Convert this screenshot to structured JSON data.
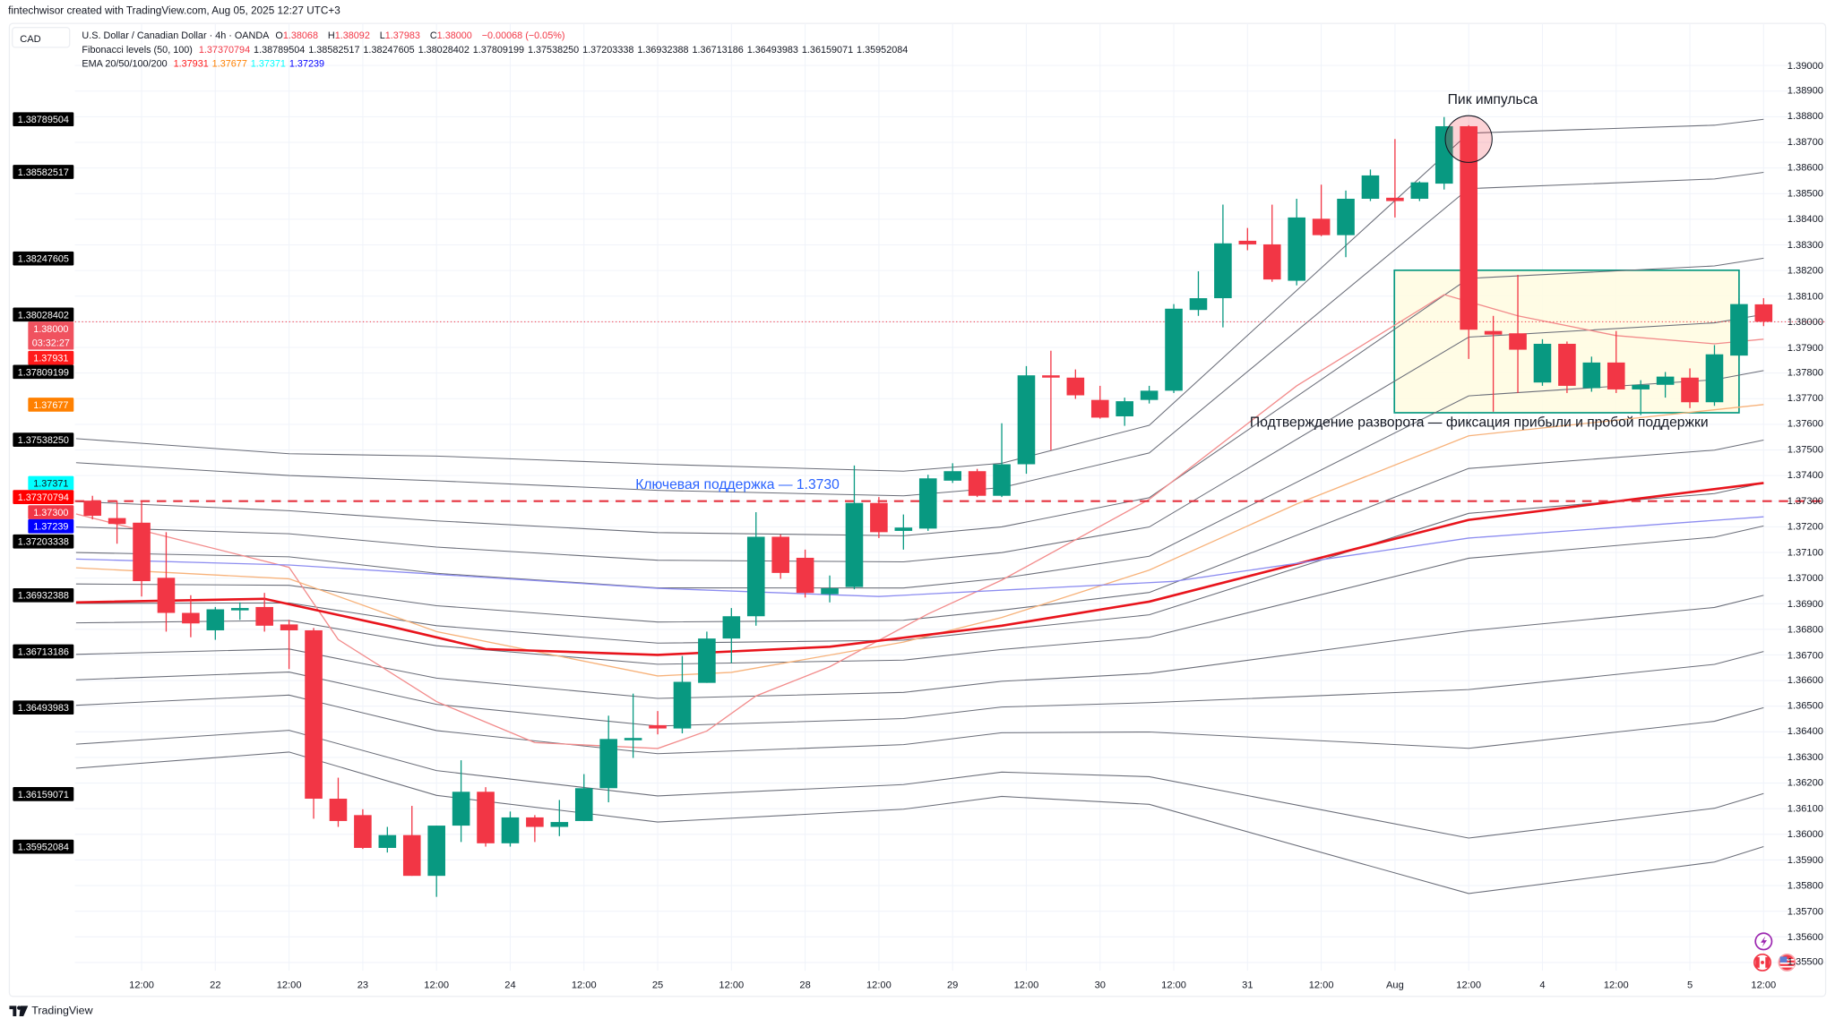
{
  "watermark": "fintechwisor created with TradingView.com, Aug 05, 2025 12:27 UTC+3",
  "currency_box": "CAD",
  "logo_text": "TradingView",
  "legend": {
    "symbol": "U.S. Dollar / Canadian Dollar · 4h · OANDA",
    "o_label": "O",
    "o": "1.38068",
    "h_label": "H",
    "h": "1.38092",
    "l_label": "L",
    "l": "1.37983",
    "c_label": "C",
    "c": "1.38000",
    "change": "−0.00068 (−0.05%)",
    "fib_title": "Fibonacci levels (50, 100)",
    "fib_values": [
      "1.37370794",
      "1.38789504",
      "1.38582517",
      "1.38247605",
      "1.38028402",
      "1.37809199",
      "1.37538250",
      "1.37203338",
      "1.36932388",
      "1.36713186",
      "1.36493983",
      "1.36159071",
      "1.35952084"
    ],
    "ema_title": "EMA 20/50/100/200",
    "ema_values": [
      "1.37931",
      "1.37677",
      "1.37371",
      "1.37239"
    ]
  },
  "colors": {
    "up": "#089981",
    "down": "#f23645",
    "fib_line": "#6a6d78",
    "ema20": "#f28b8b",
    "ema50": "#f7b27a",
    "ema100": "#e8141c",
    "ema200": "#8c8cf0",
    "ema_label_20": "#ff1a1a",
    "ema_label_50": "#ff8000",
    "ema_label_100": "#00ffff",
    "ema_label_200": "#0000ff",
    "support": "#e5323f",
    "support_text": "#2962ff",
    "zone_fill": "#fffbe0",
    "zone_border": "#089981",
    "grid": "#f0f3fa"
  },
  "chart_data": {
    "type": "candlestick",
    "symbol": "USDCAD",
    "interval": "4h",
    "ylim": [
      1.3545,
      1.3905
    ],
    "grid": true,
    "y_ticks": [
      "1.39000",
      "1.38900",
      "1.38800",
      "1.38700",
      "1.38600",
      "1.38500",
      "1.38400",
      "1.38300",
      "1.38200",
      "1.38100",
      "1.38000",
      "1.37900",
      "1.37800",
      "1.37700",
      "1.37600",
      "1.37500",
      "1.37400",
      "1.37300",
      "1.37200",
      "1.37100",
      "1.37000",
      "1.36900",
      "1.36800",
      "1.36700",
      "1.36600",
      "1.36500",
      "1.36400",
      "1.36300",
      "1.36200",
      "1.36100",
      "1.36000",
      "1.35900",
      "1.35800",
      "1.35700",
      "1.35600",
      "1.35500"
    ],
    "x_labels": [
      {
        "t": "Jul 21 12:00",
        "label": "12:00"
      },
      {
        "t": "Jul 22 00:00",
        "label": "22"
      },
      {
        "t": "Jul 22 12:00",
        "label": "12:00"
      },
      {
        "t": "Jul 23 00:00",
        "label": "23"
      },
      {
        "t": "Jul 23 12:00",
        "label": "12:00"
      },
      {
        "t": "Jul 24 00:00",
        "label": "24"
      },
      {
        "t": "Jul 24 12:00",
        "label": "12:00"
      },
      {
        "t": "Jul 25 00:00",
        "label": "25"
      },
      {
        "t": "Jul 25 12:00",
        "label": "12:00"
      },
      {
        "t": "Jul 28 00:00",
        "label": "28"
      },
      {
        "t": "Jul 28 12:00",
        "label": "12:00"
      },
      {
        "t": "Jul 29 00:00",
        "label": "29"
      },
      {
        "t": "Jul 29 12:00",
        "label": "12:00"
      },
      {
        "t": "Jul 30 00:00",
        "label": "30"
      },
      {
        "t": "Jul 30 12:00",
        "label": "12:00"
      },
      {
        "t": "Jul 31 00:00",
        "label": "31"
      },
      {
        "t": "Jul 31 12:00",
        "label": "12:00"
      },
      {
        "t": "Aug 1 00:00",
        "label": "Aug"
      },
      {
        "t": "Aug 1 12:00",
        "label": "12:00"
      },
      {
        "t": "Aug 4 00:00",
        "label": "4"
      },
      {
        "t": "Aug 4 12:00",
        "label": "12:00"
      },
      {
        "t": "Aug 5 00:00",
        "label": "5"
      },
      {
        "t": "Aug 5 12:00",
        "label": "12:00"
      }
    ],
    "candles_fields": [
      "time",
      "open",
      "high",
      "low",
      "close"
    ],
    "candles": [
      [
        "Jul 21 04:00",
        1.37302,
        1.37321,
        1.37229,
        1.37243
      ],
      [
        "Jul 21 08:00",
        1.37234,
        1.37302,
        1.37134,
        1.37211
      ],
      [
        "Jul 21 12:00",
        1.37216,
        1.37302,
        1.36928,
        1.36988
      ],
      [
        "Jul 21 16:00",
        1.37001,
        1.37179,
        1.36791,
        1.36864
      ],
      [
        "Jul 21 20:00",
        1.36864,
        1.36933,
        1.36769,
        1.36823
      ],
      [
        "Jul 22 00:00",
        1.36796,
        1.36887,
        1.36759,
        1.36878
      ],
      [
        "Jul 22 04:00",
        1.36874,
        1.36905,
        1.36837,
        1.36883
      ],
      [
        "Jul 22 08:00",
        1.36887,
        1.36942,
        1.36791,
        1.36814
      ],
      [
        "Jul 22 12:00",
        1.36819,
        1.36837,
        1.36645,
        1.36796
      ],
      [
        "Jul 22 16:00",
        1.36796,
        1.36805,
        1.36061,
        1.36139
      ],
      [
        "Jul 22 20:00",
        1.36139,
        1.36221,
        1.36029,
        1.36052
      ],
      [
        "Jul 23 00:00",
        1.36075,
        1.36098,
        1.35943,
        1.35947
      ],
      [
        "Jul 23 04:00",
        1.35947,
        1.36029,
        1.35929,
        1.35997
      ],
      [
        "Jul 23 08:00",
        1.35997,
        1.36111,
        1.35838,
        1.35838
      ],
      [
        "Jul 23 12:00",
        1.35838,
        1.36034,
        1.35756,
        1.36034
      ],
      [
        "Jul 23 16:00",
        1.36034,
        1.36289,
        1.3597,
        1.36166
      ],
      [
        "Jul 23 20:00",
        1.36166,
        1.36184,
        1.35952,
        1.35965
      ],
      [
        "Jul 24 00:00",
        1.35965,
        1.36089,
        1.35952,
        1.36066
      ],
      [
        "Jul 24 04:00",
        1.36066,
        1.36075,
        1.3597,
        1.36029
      ],
      [
        "Jul 24 08:00",
        1.36029,
        1.36134,
        1.35993,
        1.36048
      ],
      [
        "Jul 24 12:00",
        1.36052,
        1.36235,
        1.36052,
        1.3618
      ],
      [
        "Jul 24 16:00",
        1.3618,
        1.36463,
        1.36125,
        1.36372
      ],
      [
        "Jul 24 20:00",
        1.36367,
        1.36549,
        1.36298,
        1.36376
      ],
      [
        "Jul 25 00:00",
        1.36426,
        1.36481,
        1.3639,
        1.36413
      ],
      [
        "Jul 25 04:00",
        1.36413,
        1.36696,
        1.36394,
        1.36595
      ],
      [
        "Jul 25 08:00",
        1.36591,
        1.36791,
        1.36591,
        1.36764
      ],
      [
        "Jul 25 12:00",
        1.36764,
        1.36883,
        1.36668,
        1.36851
      ],
      [
        "Jul 25 16:00",
        1.36851,
        1.37257,
        1.36814,
        1.37161
      ],
      [
        "Jul 25 20:00",
        1.37161,
        1.3717,
        1.36997,
        1.3702
      ],
      [
        "Jul 28 00:00",
        1.37079,
        1.37111,
        1.36924,
        1.36942
      ],
      [
        "Jul 28 04:00",
        1.36937,
        1.3701,
        1.36905,
        1.3696
      ],
      [
        "Jul 28 08:00",
        1.36965,
        1.37439,
        1.36956,
        1.37293
      ],
      [
        "Jul 28 12:00",
        1.37293,
        1.37316,
        1.37156,
        1.37179
      ],
      [
        "Jul 28 16:00",
        1.37184,
        1.37248,
        1.37111,
        1.37197
      ],
      [
        "Jul 28 20:00",
        1.37193,
        1.37403,
        1.37184,
        1.37389
      ],
      [
        "Jul 29 00:00",
        1.3738,
        1.37448,
        1.37371,
        1.37417
      ],
      [
        "Jul 29 04:00",
        1.37417,
        1.37426,
        1.37316,
        1.37321
      ],
      [
        "Jul 29 08:00",
        1.37321,
        1.37604,
        1.37316,
        1.37444
      ],
      [
        "Jul 29 12:00",
        1.37444,
        1.37827,
        1.37407,
        1.37791
      ],
      [
        "Jul 29 16:00",
        1.37791,
        1.37887,
        1.37499,
        1.37782
      ],
      [
        "Jul 29 20:00",
        1.37782,
        1.37814,
        1.37699,
        1.37713
      ],
      [
        "Jul 30 00:00",
        1.37695,
        1.3775,
        1.37622,
        1.37626
      ],
      [
        "Jul 30 04:00",
        1.37631,
        1.37704,
        1.37594,
        1.3769
      ],
      [
        "Jul 30 08:00",
        1.37695,
        1.3775,
        1.37681,
        1.37731
      ],
      [
        "Jul 30 12:00",
        1.37731,
        1.38069,
        1.37722,
        1.38051
      ],
      [
        "Jul 30 16:00",
        1.38046,
        1.38197,
        1.38023,
        1.38092
      ],
      [
        "Jul 30 20:00",
        1.38092,
        1.38457,
        1.37978,
        1.38306
      ],
      [
        "Jul 31 00:00",
        1.38316,
        1.38366,
        1.38279,
        1.38302
      ],
      [
        "Jul 31 04:00",
        1.38302,
        1.38457,
        1.38156,
        1.38165
      ],
      [
        "Jul 31 08:00",
        1.3816,
        1.3848,
        1.38142,
        1.38407
      ],
      [
        "Jul 31 12:00",
        1.38402,
        1.38535,
        1.38334,
        1.38338
      ],
      [
        "Jul 31 16:00",
        1.38338,
        1.38512,
        1.38252,
        1.3848
      ],
      [
        "Jul 31 20:00",
        1.3848,
        1.38594,
        1.38471,
        1.38571
      ],
      [
        "Aug 1 00:00",
        1.38484,
        1.38713,
        1.38407,
        1.38471
      ],
      [
        "Aug 1 04:00",
        1.3848,
        1.38548,
        1.38471,
        1.38544
      ],
      [
        "Aug 1 08:00",
        1.38539,
        1.38799,
        1.38516,
        1.38763
      ],
      [
        "Aug 1 12:00",
        1.38763,
        1.38767,
        1.37855,
        1.37969
      ],
      [
        "Aug 1 16:00",
        1.37964,
        1.38023,
        1.37649,
        1.3795
      ],
      [
        "Aug 1 20:00",
        1.37955,
        1.38183,
        1.37722,
        1.37891
      ],
      [
        "Aug 4 00:00",
        1.37763,
        1.37932,
        1.3775,
        1.37914
      ],
      [
        "Aug 4 04:00",
        1.37914,
        1.37923,
        1.37722,
        1.3775
      ],
      [
        "Aug 4 08:00",
        1.37741,
        1.37864,
        1.37727,
        1.37841
      ],
      [
        "Aug 4 12:00",
        1.37841,
        1.37964,
        1.37722,
        1.37736
      ],
      [
        "Aug 4 16:00",
        1.37736,
        1.37772,
        1.37636,
        1.37754
      ],
      [
        "Aug 4 20:00",
        1.37754,
        1.37804,
        1.37704,
        1.37786
      ],
      [
        "Aug 5 00:00",
        1.37782,
        1.37818,
        1.37663,
        1.37686
      ],
      [
        "Aug 5 04:00",
        1.37686,
        1.37909,
        1.37672,
        1.37873
      ],
      [
        "Aug 5 08:00",
        1.37868,
        1.38092,
        1.3785,
        1.38069
      ],
      [
        "Aug 5 12:00",
        1.38068,
        1.38092,
        1.37983,
        1.38
      ]
    ],
    "fib_channel_bounds_fields": [
      "time",
      "upper",
      "lower"
    ],
    "fib_channel_bounds": [
      [
        "Jul 21 04:00",
        1.37544,
        1.36258
      ],
      [
        "Jul 22 12:00",
        1.37485,
        1.36321
      ],
      [
        "Jul 23 12:00",
        1.37476,
        1.36152
      ],
      [
        "Jul 25 00:00",
        1.37444,
        1.36048
      ],
      [
        "Jul 28 16:00",
        1.37417,
        1.36098
      ],
      [
        "Jul 29 08:00",
        1.37448,
        1.36148
      ],
      [
        "Jul 30 08:00",
        1.37596,
        1.36117
      ],
      [
        "Aug 1 12:00",
        1.38736,
        1.35769
      ],
      [
        "Aug 5 04:00",
        1.38767,
        1.35892
      ],
      [
        "Aug 5 12:00",
        1.3879,
        1.35952
      ]
    ],
    "ema": [
      {
        "name": "EMA 20",
        "color_key": "ema20",
        "width": 1,
        "points": [
          [
            "Jul 21 04:00",
            1.3725
          ],
          [
            "Jul 22 12:00",
            1.37042
          ],
          [
            "Jul 22 20:00",
            1.3676
          ],
          [
            "Jul 23 12:00",
            1.36518
          ],
          [
            "Jul 24 04:00",
            1.36358
          ],
          [
            "Jul 25 00:00",
            1.36335
          ],
          [
            "Jul 25 08:00",
            1.36403
          ],
          [
            "Jul 25 16:00",
            1.3654
          ],
          [
            "Jul 28 04:00",
            1.36654
          ],
          [
            "Jul 28 20:00",
            1.3686
          ],
          [
            "Jul 29 08:00",
            1.36992
          ],
          [
            "Jul 30 08:00",
            1.37307
          ],
          [
            "Jul 31 08:00",
            1.3775
          ],
          [
            "Aug 1 08:00",
            1.38106
          ],
          [
            "Aug 1 20:00",
            1.38023
          ],
          [
            "Aug 4 12:00",
            1.37946
          ],
          [
            "Aug 5 04:00",
            1.37914
          ],
          [
            "Aug 5 12:00",
            1.37932
          ]
        ]
      },
      {
        "name": "EMA 50",
        "color_key": "ema50",
        "width": 1,
        "points": [
          [
            "Jul 21 04:00",
            1.3704
          ],
          [
            "Jul 22 12:00",
            1.36997
          ],
          [
            "Jul 23 12:00",
            1.36791
          ],
          [
            "Jul 25 00:00",
            1.36618
          ],
          [
            "Jul 25 12:00",
            1.36632
          ],
          [
            "Jul 28 16:00",
            1.3675
          ],
          [
            "Jul 29 08:00",
            1.36846
          ],
          [
            "Jul 30 08:00",
            1.37031
          ],
          [
            "Jul 31 08:00",
            1.37289
          ],
          [
            "Aug 1 12:00",
            1.37555
          ],
          [
            "Aug 5 12:00",
            1.37677
          ]
        ]
      },
      {
        "name": "EMA 100",
        "color_key": "ema100",
        "width": 2,
        "points": [
          [
            "Jul 21 04:00",
            1.36905
          ],
          [
            "Jul 22 08:00",
            1.36919
          ],
          [
            "Jul 23 04:00",
            1.36814
          ],
          [
            "Jul 23 20:00",
            1.36723
          ],
          [
            "Jul 25 00:00",
            1.367
          ],
          [
            "Jul 28 04:00",
            1.36732
          ],
          [
            "Jul 29 08:00",
            1.36814
          ],
          [
            "Jul 30 08:00",
            1.36908
          ],
          [
            "Aug 1 12:00",
            1.37227
          ],
          [
            "Aug 5 12:00",
            1.37371
          ]
        ]
      },
      {
        "name": "EMA 200",
        "color_key": "ema200",
        "width": 1,
        "points": [
          [
            "Jul 21 04:00",
            1.37074
          ],
          [
            "Jul 22 12:00",
            1.37051
          ],
          [
            "Jul 25 00:00",
            1.3696
          ],
          [
            "Jul 28 12:00",
            1.36928
          ],
          [
            "Jul 30 12:00",
            1.36987
          ],
          [
            "Aug 1 12:00",
            1.37156
          ],
          [
            "Aug 5 12:00",
            1.37239
          ]
        ]
      }
    ],
    "support_line": {
      "price": 1.373,
      "label": "Ключевая поддержка — 1.3730"
    },
    "peak_marker": {
      "time": "Aug 1 12:00",
      "price": 1.38713,
      "label": "Пик импульса"
    },
    "reversal_zone": {
      "from": "Aug 1 00:00",
      "to": "Aug 5 08:00",
      "top": 1.38201,
      "bottom": 1.37645,
      "label": "Подтверждение разворота — фиксация прибыли и пробой поддержки"
    },
    "last_price": {
      "price": "1.38000",
      "countdown": "03:32:27"
    },
    "axis_labels": [
      {
        "text": "1.38789504",
        "bg": "#000000",
        "fg": "#ffffff"
      },
      {
        "text": "1.38582517",
        "bg": "#000000",
        "fg": "#ffffff"
      },
      {
        "text": "1.38247605",
        "bg": "#000000",
        "fg": "#ffffff"
      },
      {
        "text": "1.38028402",
        "bg": "#000000",
        "fg": "#ffffff"
      },
      {
        "text": "1.37931",
        "bg": "#ff1a1a",
        "fg": "#ffffff"
      },
      {
        "text": "1.37809199",
        "bg": "#000000",
        "fg": "#ffffff"
      },
      {
        "text": "1.37677",
        "bg": "#ff8000",
        "fg": "#ffffff"
      },
      {
        "text": "1.37538250",
        "bg": "#000000",
        "fg": "#ffffff"
      },
      {
        "text": "1.37371",
        "bg": "#00ffff",
        "fg": "#131722"
      },
      {
        "text": "1.37370794",
        "bg": "#ff0000",
        "fg": "#ffffff"
      },
      {
        "text": "1.37300",
        "bg": "#f23645",
        "fg": "#ffffff"
      },
      {
        "text": "1.37239",
        "bg": "#0000ff",
        "fg": "#ffffff"
      },
      {
        "text": "1.37203338",
        "bg": "#000000",
        "fg": "#ffffff"
      },
      {
        "text": "1.36932388",
        "bg": "#000000",
        "fg": "#ffffff"
      },
      {
        "text": "1.36713186",
        "bg": "#000000",
        "fg": "#ffffff"
      },
      {
        "text": "1.36493983",
        "bg": "#000000",
        "fg": "#ffffff"
      },
      {
        "text": "1.36159071",
        "bg": "#000000",
        "fg": "#ffffff"
      },
      {
        "text": "1.35952084",
        "bg": "#000000",
        "fg": "#ffffff"
      }
    ],
    "icons": [
      "lightning-icon",
      "canada-flag-icon",
      "usa-flag-icon"
    ]
  }
}
